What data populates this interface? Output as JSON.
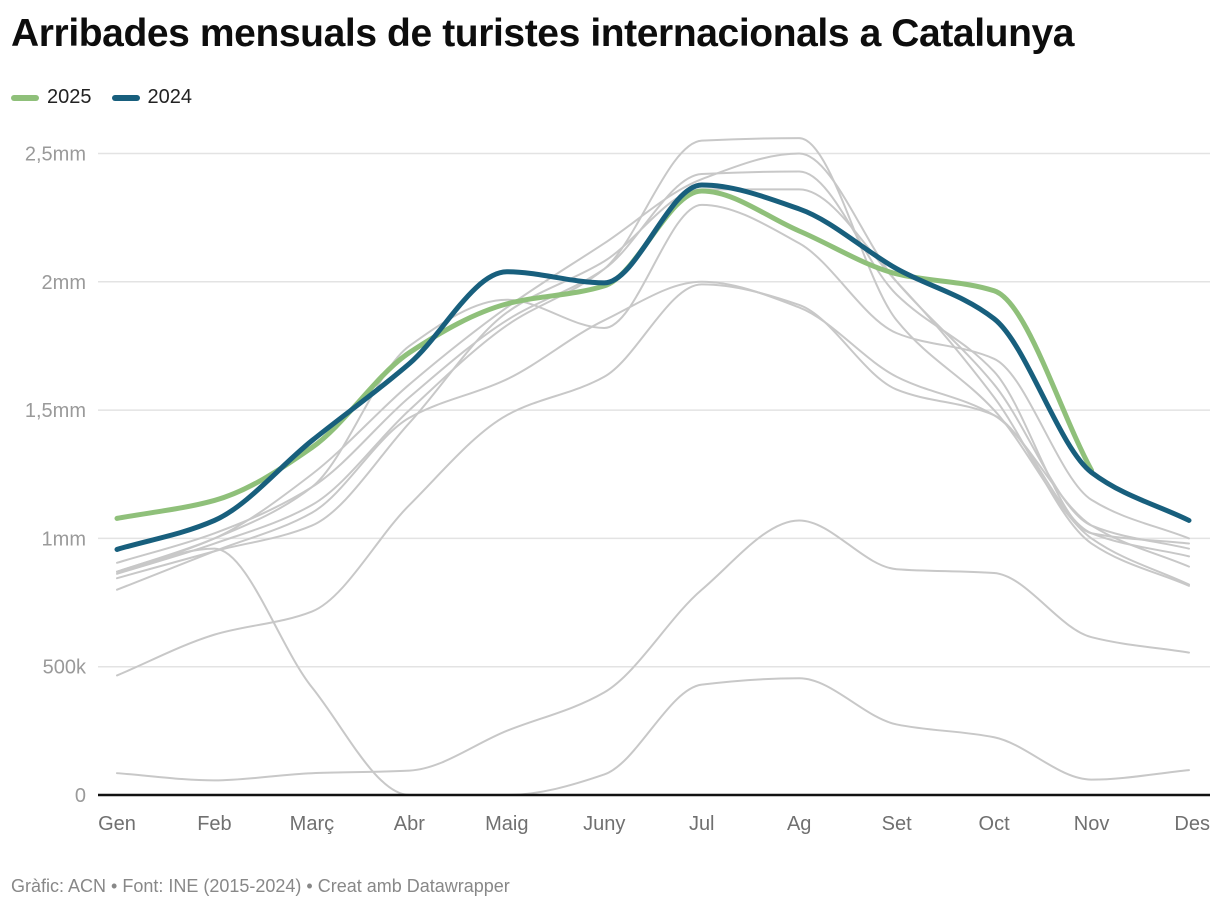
{
  "title": "Arribades mensuals de turistes internacionals a Catalunya",
  "footer": "Gràfic: ACN • Font: INE (2015-2024) • Creat amb Datawrapper",
  "colors": {
    "series_2025": "#8fc07a",
    "series_2024": "#185f7d",
    "history": "#c8c8c8",
    "grid": "#e3e3e3",
    "axis": "#111111"
  },
  "chart_data": {
    "type": "line",
    "title": "Arribades mensuals de turistes internacionals a Catalunya",
    "xlabel": "",
    "ylabel": "",
    "categories": [
      "Gen",
      "Feb",
      "Març",
      "Abr",
      "Maig",
      "Juny",
      "Jul",
      "Ag",
      "Set",
      "Oct",
      "Nov",
      "Des"
    ],
    "ylim": [
      0,
      2500000
    ],
    "yticks": [
      {
        "value": 0,
        "label": "0"
      },
      {
        "value": 500000,
        "label": "500k"
      },
      {
        "value": 1000000,
        "label": "1mm"
      },
      {
        "value": 1500000,
        "label": "1,5mm"
      },
      {
        "value": 2000000,
        "label": "2mm"
      },
      {
        "value": 2500000,
        "label": "2,5mm"
      }
    ],
    "grid": true,
    "legend": {
      "position": "top-left",
      "entries": [
        "2025",
        "2024"
      ]
    },
    "highlight_series": [
      {
        "name": "2025",
        "color": "#8fc07a",
        "values": [
          1078000,
          1148000,
          1354000,
          1724000,
          1914000,
          1984000,
          2354000,
          2198000,
          2031000,
          1965000,
          1265000,
          null
        ]
      },
      {
        "name": "2024",
        "color": "#185f7d",
        "values": [
          957000,
          1070000,
          1381000,
          1681000,
          2039000,
          1996000,
          2377000,
          2284000,
          2051000,
          1856000,
          1257000,
          1070000
        ]
      }
    ],
    "background_series": [
      {
        "name": "prior-year-a",
        "values": [
          862000,
          980000,
          1130000,
          1500000,
          1830000,
          2050000,
          2550000,
          2560000,
          1850000,
          1500000,
          1000000,
          820000
        ]
      },
      {
        "name": "prior-year-b",
        "values": [
          870000,
          1000000,
          1250000,
          1600000,
          1900000,
          2150000,
          2400000,
          2500000,
          2000000,
          1600000,
          1050000,
          960000
        ]
      },
      {
        "name": "prior-year-c",
        "values": [
          905000,
          1020000,
          1200000,
          1550000,
          1850000,
          2050000,
          2420000,
          2430000,
          1950000,
          1650000,
          1020000,
          980000
        ]
      },
      {
        "name": "prior-year-d",
        "values": [
          845000,
          950000,
          1050000,
          1450000,
          1880000,
          2080000,
          2360000,
          2360000,
          2000000,
          1550000,
          980000,
          815000
        ]
      },
      {
        "name": "prior-year-e",
        "values": [
          870000,
          1000000,
          1200000,
          1750000,
          1930000,
          1820000,
          2300000,
          2150000,
          1800000,
          1700000,
          1150000,
          1000000
        ]
      },
      {
        "name": "prior-year-f",
        "values": [
          800000,
          950000,
          1100000,
          1470000,
          1620000,
          1850000,
          2000000,
          1900000,
          1630000,
          1480000,
          1050000,
          890000
        ]
      },
      {
        "name": "prior-year-g",
        "values": [
          466000,
          625000,
          715000,
          1130000,
          1480000,
          1630000,
          1990000,
          1910000,
          1580000,
          1480000,
          1020000,
          930000
        ]
      },
      {
        "name": "prior-year-h",
        "values": [
          85000,
          57000,
          85000,
          95000,
          250000,
          400000,
          800000,
          1070000,
          880000,
          865000,
          615000,
          555000
        ]
      },
      {
        "name": "prior-year-i",
        "values": [
          870000,
          960000,
          420000,
          0,
          0,
          80000,
          430000,
          455000,
          275000,
          225000,
          60000,
          97000
        ]
      }
    ]
  }
}
